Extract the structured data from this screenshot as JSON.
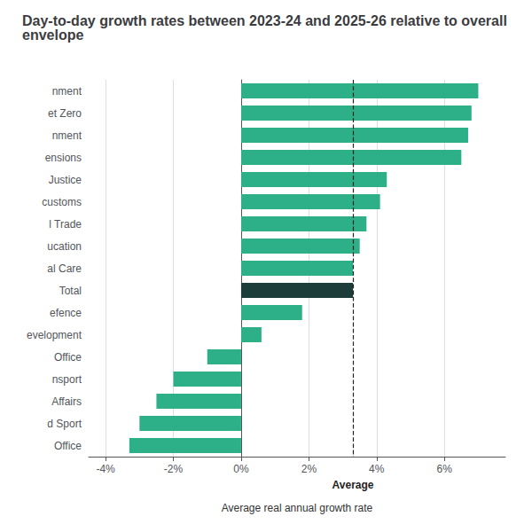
{
  "chart_data": {
    "type": "bar",
    "orientation": "horizontal",
    "title": "Day-to-day growth rates between 2023-24 and 2025-26 relative to overall envelope",
    "categories": [
      "nment",
      "et Zero",
      "nment",
      "ensions",
      "Justice",
      "customs",
      "l Trade",
      "ucation",
      "al Care",
      "Total",
      "efence",
      "evelopment",
      "Office",
      "nsport",
      "Affairs",
      "d Sport",
      "Office"
    ],
    "values": [
      7.0,
      6.8,
      6.7,
      6.5,
      4.3,
      4.1,
      3.7,
      3.5,
      3.3,
      3.3,
      1.8,
      0.6,
      -1.0,
      -2.0,
      -2.5,
      -3.0,
      -3.3
    ],
    "colors": [
      "#2DB087",
      "#2DB087",
      "#2DB087",
      "#2DB087",
      "#2DB087",
      "#2DB087",
      "#2DB087",
      "#2DB087",
      "#2DB087",
      "#1C3D3A",
      "#2DB087",
      "#2DB087",
      "#2DB087",
      "#2DB087",
      "#2DB087",
      "#2DB087",
      "#2DB087"
    ],
    "xlabel": "Average real annual growth rate",
    "xlim": [
      -4.5,
      7.8
    ],
    "xticks": [
      {
        "value": -4,
        "label": "-4%"
      },
      {
        "value": -2,
        "label": "-2%"
      },
      {
        "value": 0,
        "label": "0%"
      },
      {
        "value": 2,
        "label": "2%"
      },
      {
        "value": 4,
        "label": "4%"
      },
      {
        "value": 6,
        "label": "6%"
      }
    ],
    "grid": true,
    "annotations": [
      {
        "x": 3.3,
        "text": "Average"
      }
    ]
  }
}
